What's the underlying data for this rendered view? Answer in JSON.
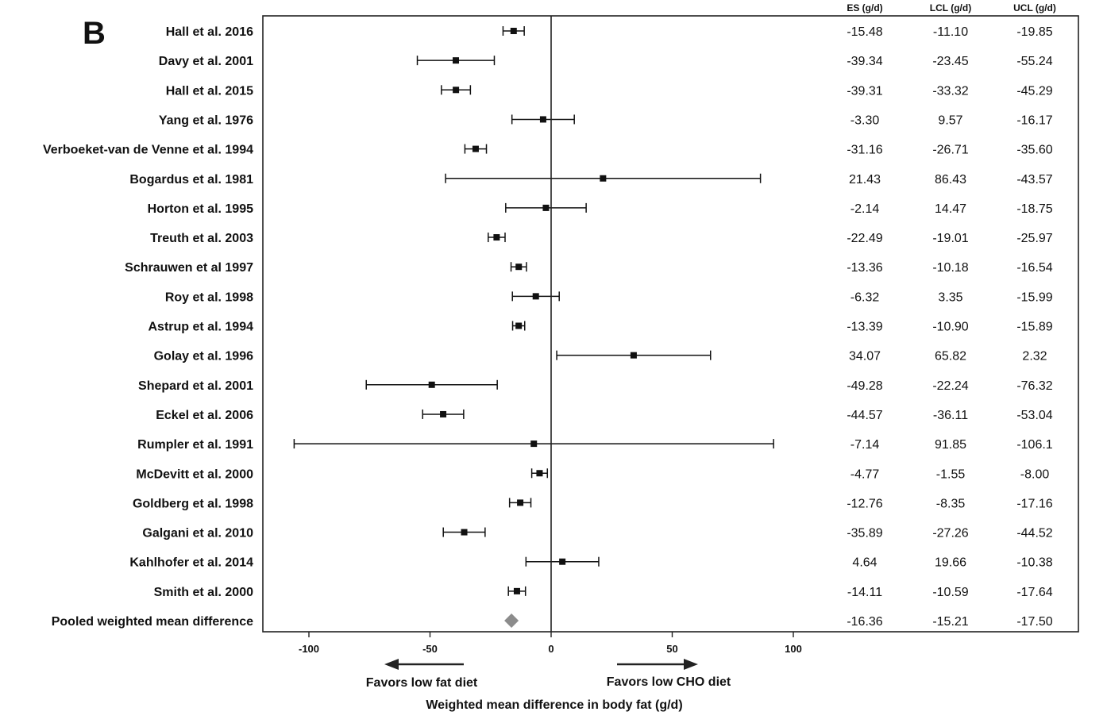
{
  "panel_label": "B",
  "chart_data": {
    "type": "forest",
    "xlabel": "Weighted mean difference in body fat (g/d)",
    "xlim": [
      -120,
      130
    ],
    "x_ticks": [
      -100,
      -50,
      0,
      50,
      100
    ],
    "x_tick_labels": [
      "-100",
      "-50",
      "0",
      "50",
      "100"
    ],
    "reference_line": 0,
    "direction_labels": {
      "left": "Favors low fat diet",
      "right": "Favors low CHO diet"
    },
    "columns": [
      "ES (g/d)",
      "LCL (g/d)",
      "UCL (g/d)"
    ],
    "studies": [
      {
        "label": "Hall et al. 2016",
        "es": "-15.48",
        "lcl": "-11.10",
        "ucl": "-19.85"
      },
      {
        "label": "Davy et al. 2001",
        "es": "-39.34",
        "lcl": "-23.45",
        "ucl": "-55.24"
      },
      {
        "label": "Hall et al. 2015",
        "es": "-39.31",
        "lcl": "-33.32",
        "ucl": "-45.29"
      },
      {
        "label": "Yang et al. 1976",
        "es": "-3.30",
        "lcl": "9.57",
        "ucl": "-16.17"
      },
      {
        "label": "Verboeket-van de Venne et al. 1994",
        "es": "-31.16",
        "lcl": "-26.71",
        "ucl": "-35.60"
      },
      {
        "label": "Bogardus et al. 1981",
        "es": "21.43",
        "lcl": "86.43",
        "ucl": "-43.57"
      },
      {
        "label": "Horton et al. 1995",
        "es": "-2.14",
        "lcl": "14.47",
        "ucl": "-18.75"
      },
      {
        "label": "Treuth et al. 2003",
        "es": "-22.49",
        "lcl": "-19.01",
        "ucl": "-25.97"
      },
      {
        "label": "Schrauwen et al 1997",
        "es": "-13.36",
        "lcl": "-10.18",
        "ucl": "-16.54"
      },
      {
        "label": "Roy et al. 1998",
        "es": "-6.32",
        "lcl": "3.35",
        "ucl": "-15.99"
      },
      {
        "label": "Astrup et al. 1994",
        "es": "-13.39",
        "lcl": "-10.90",
        "ucl": "-15.89"
      },
      {
        "label": "Golay et al. 1996",
        "es": "34.07",
        "lcl": "65.82",
        "ucl": "2.32"
      },
      {
        "label": "Shepard et al. 2001",
        "es": "-49.28",
        "lcl": "-22.24",
        "ucl": "-76.32"
      },
      {
        "label": "Eckel et al. 2006",
        "es": "-44.57",
        "lcl": "-36.11",
        "ucl": "-53.04"
      },
      {
        "label": "Rumpler et al. 1991",
        "es": "-7.14",
        "lcl": "91.85",
        "ucl": "-106.1"
      },
      {
        "label": "McDevitt et al. 2000",
        "es": "-4.77",
        "lcl": "-1.55",
        "ucl": "-8.00"
      },
      {
        "label": "Goldberg et al. 1998",
        "es": "-12.76",
        "lcl": "-8.35",
        "ucl": "-17.16"
      },
      {
        "label": "Galgani et al. 2010",
        "es": "-35.89",
        "lcl": "-27.26",
        "ucl": "-44.52"
      },
      {
        "label": "Kahlhofer et al. 2014",
        "es": "4.64",
        "lcl": "19.66",
        "ucl": "-10.38"
      },
      {
        "label": "Smith et al. 2000",
        "es": "-14.11",
        "lcl": "-10.59",
        "ucl": "-17.64"
      }
    ],
    "pooled": {
      "label": "Pooled weighted mean difference",
      "es": "-16.36",
      "lcl": "-15.21",
      "ucl": "-17.50"
    },
    "colors": {
      "marker": "#111111",
      "pooled": "#8c8c8c",
      "axis": "#222222"
    }
  }
}
